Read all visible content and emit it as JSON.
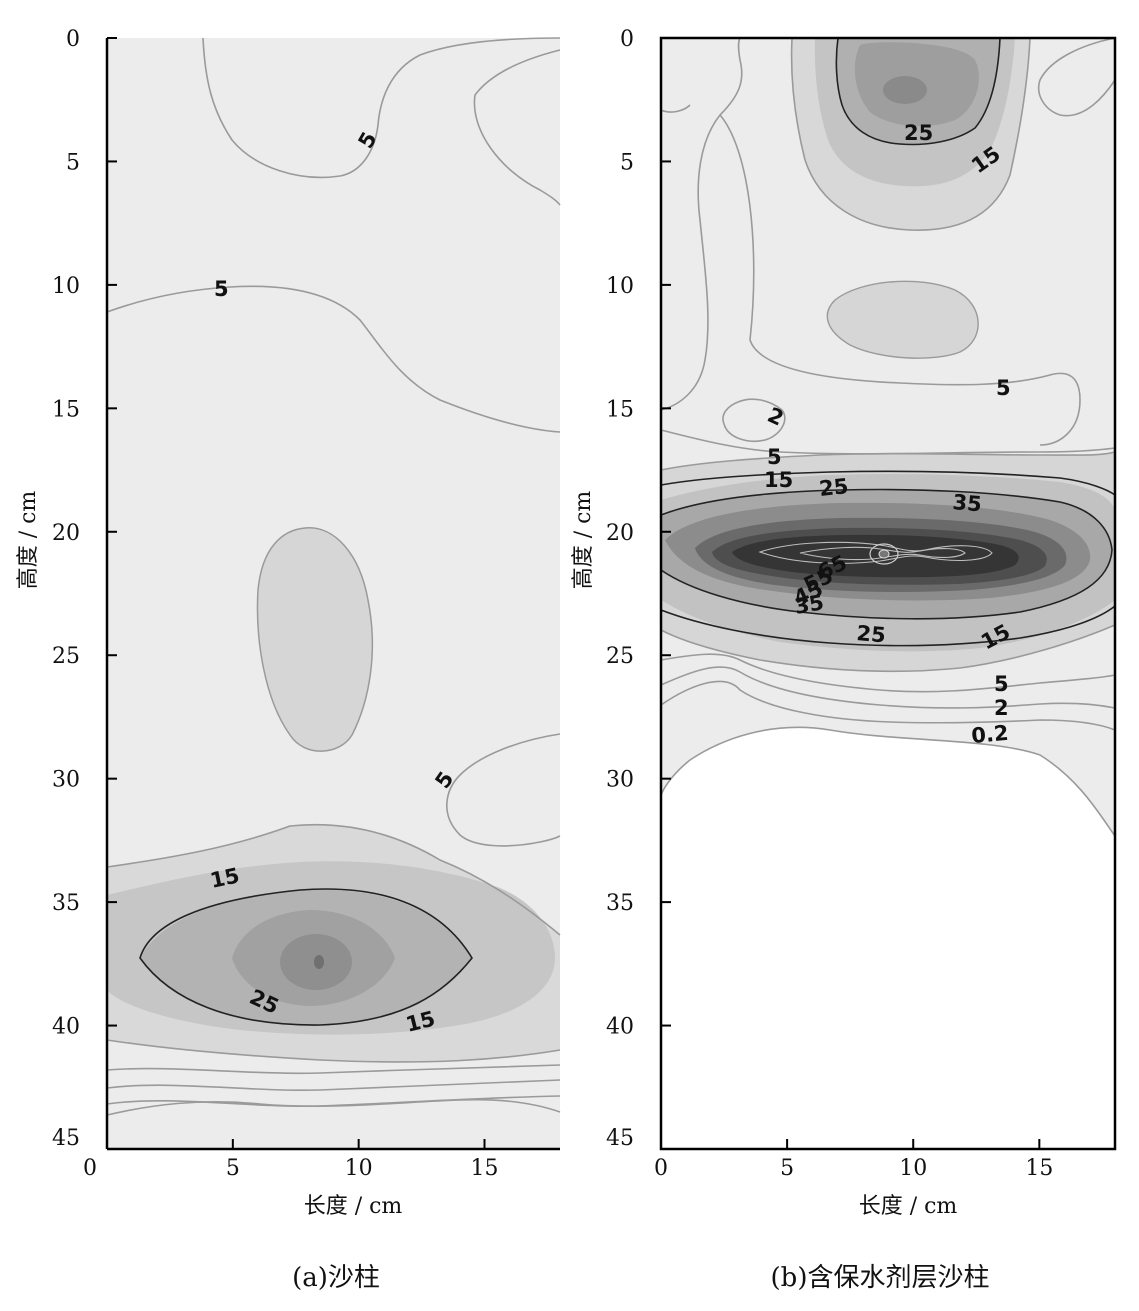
{
  "chart_data": [
    {
      "type": "contour",
      "title": "",
      "caption": "(a)沙柱",
      "xlabel": "长度 / cm",
      "ylabel": "高度 / cm",
      "xlim": [
        0,
        18
      ],
      "ylim": [
        0,
        45
      ],
      "y_inverted": true,
      "x_ticks": [
        0,
        5,
        10,
        15
      ],
      "y_ticks": [
        0,
        5,
        10,
        15,
        20,
        25,
        30,
        35,
        40,
        45
      ],
      "contour_labels": [
        {
          "text": "5",
          "x": 10.5,
          "y": 4.2
        },
        {
          "text": "5",
          "x": 4.5,
          "y": 10.1
        },
        {
          "text": "5",
          "x": 13.5,
          "y": 30.0
        },
        {
          "text": "15",
          "x": 4.9,
          "y": 34.2
        },
        {
          "text": "25",
          "x": 6.3,
          "y": 38.8
        },
        {
          "text": "15",
          "x": 12.7,
          "y": 40.0
        }
      ],
      "features": [
        {
          "kind": "shaded-region",
          "center_x": 8.4,
          "center_y": 24.3
        },
        {
          "kind": "maximum",
          "x": 8.9,
          "y": 37.5
        }
      ]
    },
    {
      "type": "contour",
      "title": "",
      "caption": "(b)含保水剂层沙柱",
      "xlabel": "长度 / cm",
      "ylabel": "高度 / cm",
      "xlim": [
        0,
        18
      ],
      "ylim": [
        0,
        45
      ],
      "y_inverted": true,
      "x_ticks": [
        0,
        5,
        10,
        15
      ],
      "y_ticks": [
        0,
        5,
        10,
        15,
        20,
        25,
        30,
        35,
        40,
        45
      ],
      "contour_labels": [
        {
          "text": "25",
          "x": 10.2,
          "y": 3.7
        },
        {
          "text": "15",
          "x": 13.0,
          "y": 4.8
        },
        {
          "text": "5",
          "x": 13.5,
          "y": 14.6
        },
        {
          "text": "2",
          "x": 3.5,
          "y": 15.3
        },
        {
          "text": "5",
          "x": 4.5,
          "y": 17.2
        },
        {
          "text": "15",
          "x": 4.8,
          "y": 18.0
        },
        {
          "text": "25",
          "x": 7.0,
          "y": 18.4
        },
        {
          "text": "35",
          "x": 12.0,
          "y": 19.0
        },
        {
          "text": "65",
          "x": 7.2,
          "y": 21.7
        },
        {
          "text": "55",
          "x": 6.5,
          "y": 22.3
        },
        {
          "text": "45",
          "x": 6.0,
          "y": 22.9
        },
        {
          "text": "35",
          "x": 5.9,
          "y": 23.4
        },
        {
          "text": "25",
          "x": 8.4,
          "y": 24.2
        },
        {
          "text": "15",
          "x": 13.2,
          "y": 24.3
        },
        {
          "text": "5",
          "x": 13.5,
          "y": 26.2
        },
        {
          "text": "2",
          "x": 13.5,
          "y": 27.2
        },
        {
          "text": "0.2",
          "x": 13.1,
          "y": 28.1
        }
      ],
      "features": [
        {
          "kind": "maximum",
          "x": 9.0,
          "y": 2.0
        },
        {
          "kind": "shaded-region",
          "center_x": 9.0,
          "center_y": 11.9
        },
        {
          "kind": "maximum",
          "x": 8.9,
          "y": 21.0
        }
      ]
    }
  ]
}
